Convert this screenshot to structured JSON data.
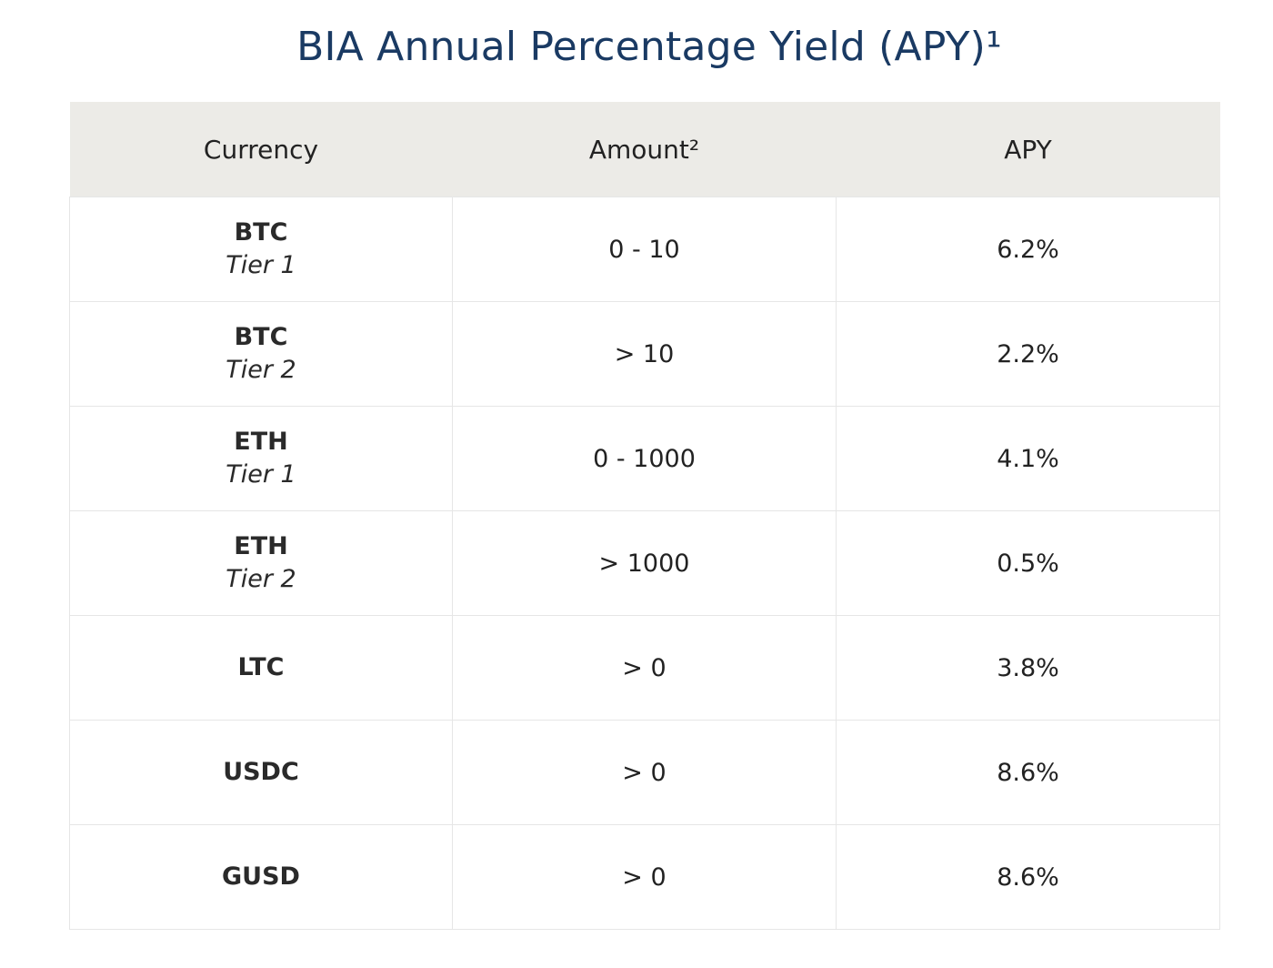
{
  "title": "BIA Annual Percentage Yield (APY)¹",
  "table": {
    "headers": [
      "Currency",
      "Amount²",
      "APY"
    ],
    "rows": [
      {
        "currency": "BTC",
        "tier": "Tier 1",
        "amount": "0 - 10",
        "apy": "6.2%"
      },
      {
        "currency": "BTC",
        "tier": "Tier 2",
        "amount": "> 10",
        "apy": "2.2%"
      },
      {
        "currency": "ETH",
        "tier": "Tier 1",
        "amount": "0 - 1000",
        "apy": "4.1%"
      },
      {
        "currency": "ETH",
        "tier": "Tier 2",
        "amount": "> 1000",
        "apy": "0.5%"
      },
      {
        "currency": "LTC",
        "tier": "",
        "amount": "> 0",
        "apy": "3.8%"
      },
      {
        "currency": "USDC",
        "tier": "",
        "amount": "> 0",
        "apy": "8.6%"
      },
      {
        "currency": "GUSD",
        "tier": "",
        "amount": "> 0",
        "apy": "8.6%"
      }
    ]
  },
  "colors": {
    "title": "#1a3a63",
    "header_background": "#ecebe7",
    "border": "#e6e6e6",
    "text": "#222222"
  }
}
